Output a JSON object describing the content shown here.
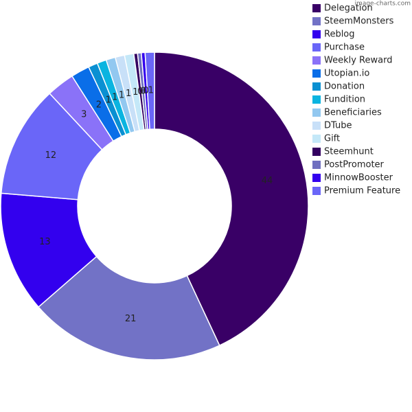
{
  "chart_data": {
    "type": "pie",
    "watermark": "image-charts.com",
    "categories": [
      "Delegation",
      "SteemMonsters",
      "Reblog",
      "Purchase",
      "Weekly Reward",
      "Utopian.io",
      "Donation",
      "Fundition",
      "Beneficiaries",
      "DTube",
      "Gift",
      "Steemhunt",
      "PostPromoter",
      "MinnowBooster",
      "Premium Feature"
    ],
    "values": [
      44,
      21,
      13,
      12,
      3,
      2,
      1,
      1,
      1,
      1,
      1,
      0.4,
      0.4,
      0.4,
      1
    ],
    "value_labels": [
      "44",
      "21",
      "13",
      "12",
      "3",
      "2",
      "1",
      "1",
      "1",
      "1",
      "1",
      "0",
      "0",
      "0",
      "1"
    ],
    "colors": [
      "#390066",
      "#7272c6",
      "#3300ee",
      "#6a66f8",
      "#8a72f8",
      "#0a6ee8",
      "#0a90d2",
      "#0ab4e0",
      "#92c8f0",
      "#c8e0f8",
      "#c4e8f8",
      "#330060",
      "#7070c0",
      "#3300ee",
      "#6a66f8"
    ],
    "legend": "right"
  }
}
